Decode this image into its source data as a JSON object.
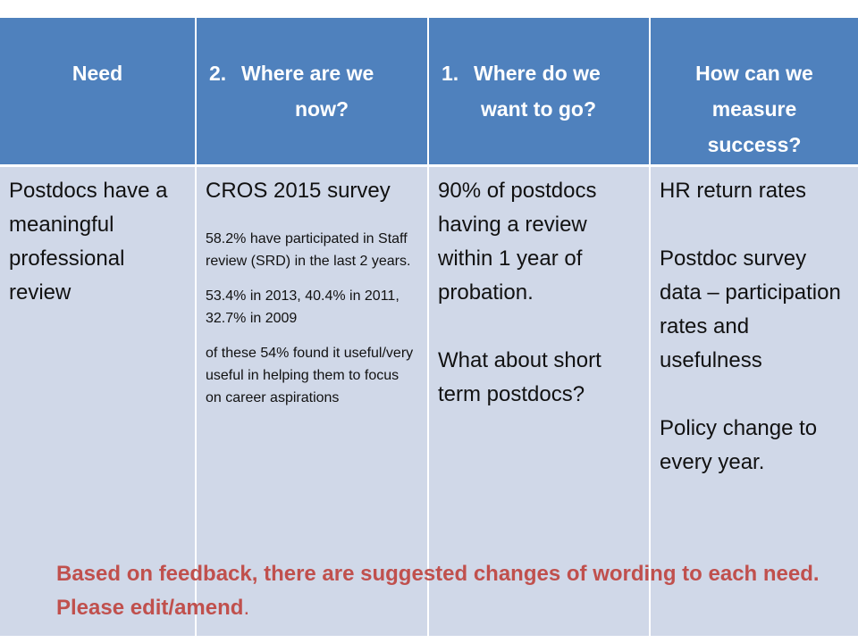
{
  "table": {
    "headers": [
      {
        "text": "Need"
      },
      {
        "num": "2.",
        "line1": "Where are we",
        "line2": "now?"
      },
      {
        "num": "1.",
        "line1": "Where do we",
        "line2": "want to go?"
      },
      {
        "text": "How can we measure success?"
      }
    ],
    "need": "Postdocs have a  meaningful professional review",
    "now": {
      "title": "CROS 2015 survey",
      "p1": "58.2% have participated in Staff review (SRD) in the last 2 years.",
      "p2": "53.4% in 2013, 40.4% in 2011, 32.7% in 2009",
      "p3": "of these 54% found it useful/very useful in helping them to focus on career aspirations"
    },
    "goal": {
      "p1": "90% of postdocs having a review within 1 year of probation.",
      "p2": "What about short term postdocs?"
    },
    "measure": {
      "p1": "HR return rates",
      "p2": "Postdoc survey data – participation rates and usefulness",
      "p3": "Policy change to every year."
    }
  },
  "note": {
    "text": "Based on feedback, there are suggested changes of wording to each need.  Please edit/amend",
    "tail": "."
  }
}
